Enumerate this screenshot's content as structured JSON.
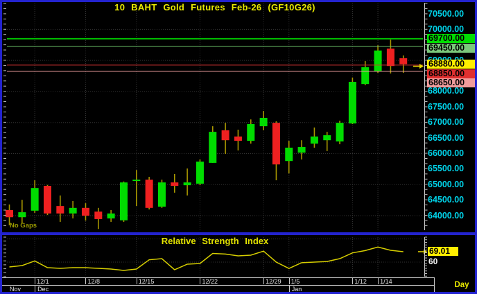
{
  "window": {
    "app": "futures-charting-workstation"
  },
  "colors": {
    "frame_blue": "#2323cf",
    "panel_bg": "#000000",
    "title_yellow": "#e9e900",
    "axis_cyan": "#00d2e8",
    "candle_up": "#00dc00",
    "candle_down": "#ef2020",
    "wick_olive": "#a89700",
    "rsi_line": "#d6ce00",
    "grid": "#343434",
    "axis_ticks": "#c0c0c0",
    "date_text": "#e4e4e4",
    "last_price_bg": "#ffee00"
  },
  "chart_data": [
    {
      "type": "candlestick",
      "title": "10  BAHT  Gold  Futures  Feb-26  (GF10G26)",
      "no_gaps_label": "No Gaps",
      "ylim": [
        64000,
        70500
      ],
      "grid_interval": 1000,
      "y_axis_ticks": [
        70500,
        70000,
        69000,
        68000,
        67500,
        67000,
        66500,
        66000,
        65500,
        65000,
        64500,
        64000
      ],
      "last_price": 68880,
      "highlight_labels": [
        {
          "value": 69700,
          "text": "69700.00",
          "bg": "#00dd00",
          "line": "#00c000",
          "line_width": 2
        },
        {
          "value": 69450,
          "text": "69450.00",
          "bg": "#7cc87c",
          "line": "#6abf69",
          "line_width": 1
        },
        {
          "value": 68880,
          "text": "68880.00",
          "bg": "#ffee00",
          "line": null,
          "line_width": 0,
          "arrow": true
        },
        {
          "value": 68850,
          "text": "68850.00",
          "bg": "#e03030",
          "line": "#d03030",
          "line_width": 1
        },
        {
          "value": 68650,
          "text": "68650.00",
          "bg": "#f09c9c",
          "line": "#f0a0a0",
          "line_width": 1
        }
      ],
      "candles_ohlc": [
        [
          64180,
          64360,
          63690,
          63950
        ],
        [
          63950,
          64510,
          63750,
          64110
        ],
        [
          64160,
          65140,
          64090,
          64890
        ],
        [
          64960,
          64990,
          64020,
          64070
        ],
        [
          64310,
          64650,
          63800,
          64070
        ],
        [
          64070,
          64470,
          63910,
          64250
        ],
        [
          64250,
          64400,
          63840,
          64000
        ],
        [
          64130,
          64250,
          63570,
          63890
        ],
        [
          63910,
          64180,
          63800,
          64070
        ],
        [
          63850,
          65100,
          63800,
          65070
        ],
        [
          65120,
          65470,
          64310,
          65160
        ],
        [
          65160,
          65250,
          64200,
          64250
        ],
        [
          64290,
          65160,
          64250,
          65070
        ],
        [
          65070,
          65340,
          64740,
          64960
        ],
        [
          64980,
          65520,
          64650,
          65070
        ],
        [
          65030,
          65810,
          64980,
          65740
        ],
        [
          65700,
          66880,
          65700,
          66700
        ],
        [
          66750,
          66990,
          65990,
          66430
        ],
        [
          66550,
          66770,
          66100,
          66410
        ],
        [
          66410,
          67100,
          66320,
          66950
        ],
        [
          66880,
          67370,
          66750,
          67150
        ],
        [
          66990,
          67040,
          65140,
          65650
        ],
        [
          65760,
          66410,
          65360,
          66190
        ],
        [
          66030,
          66430,
          65810,
          66210
        ],
        [
          66320,
          66840,
          66190,
          66550
        ],
        [
          66430,
          66700,
          66080,
          66590
        ],
        [
          66390,
          67060,
          66300,
          66990
        ],
        [
          66970,
          68450,
          66950,
          68310
        ],
        [
          68240,
          68980,
          68200,
          68780
        ],
        [
          68650,
          69490,
          68600,
          69320
        ],
        [
          69380,
          69670,
          68580,
          68820
        ],
        [
          69070,
          69160,
          68600,
          68880
        ]
      ]
    },
    {
      "type": "line",
      "title": "Relative  Strength  Index",
      "current_value": "69.01",
      "scale_label": "60",
      "reference_levels": [
        80,
        60
      ],
      "values": [
        55.8,
        57,
        61,
        55.2,
        54.6,
        55.2,
        55.2,
        54.6,
        54,
        52.8,
        54,
        62,
        63,
        53.4,
        58.2,
        58.8,
        67.5,
        67,
        65.4,
        66,
        69.5,
        60,
        54.5,
        59.5,
        60,
        60.5,
        63,
        68,
        70,
        73,
        70.2,
        69.01
      ]
    }
  ],
  "date_axis": {
    "week_ticks": [
      {
        "label": "12/1",
        "candle": 2
      },
      {
        "label": "12/8",
        "candle": 6
      },
      {
        "label": "12/15",
        "candle": 10
      },
      {
        "label": "12/22",
        "candle": 15
      },
      {
        "label": "12/29",
        "candle": 20
      },
      {
        "label": "1/5",
        "candle": 22
      },
      {
        "label": "1/12",
        "candle": 27
      },
      {
        "label": "1/14",
        "candle": 29
      }
    ],
    "months": [
      {
        "label": "Nov",
        "candle": 0
      },
      {
        "label": "Dec",
        "candle": 2
      },
      {
        "label": "Jan",
        "candle": 22
      }
    ],
    "period_label": "Day"
  }
}
